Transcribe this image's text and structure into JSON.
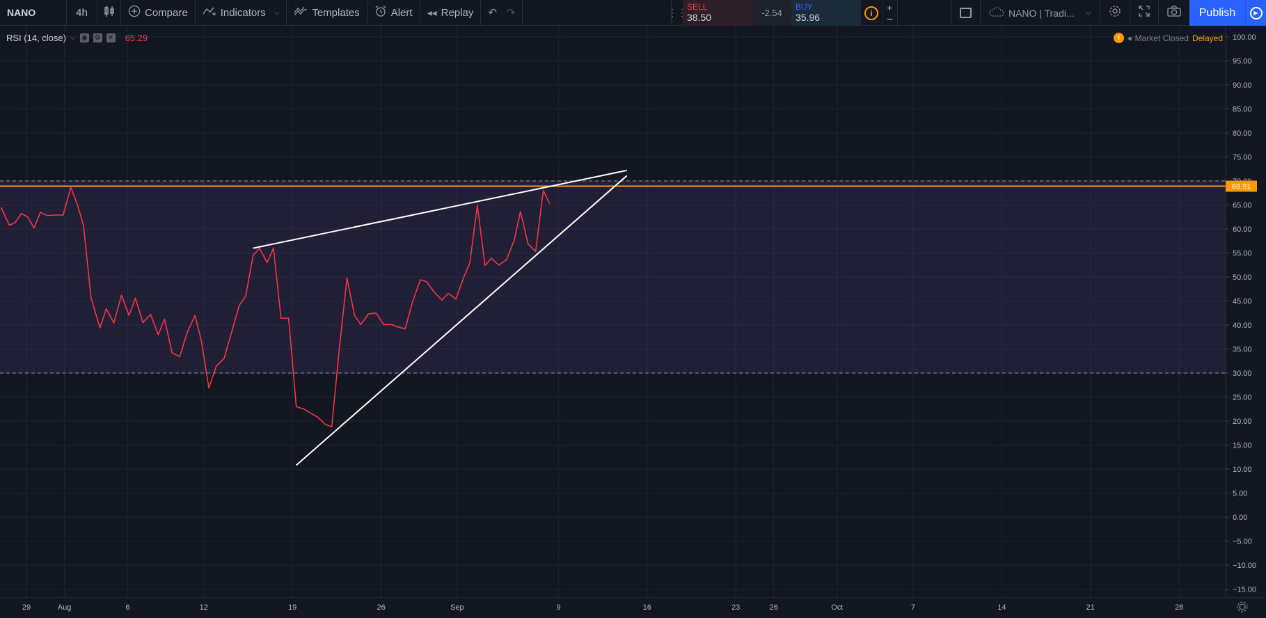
{
  "toolbar": {
    "symbol": "NANO",
    "interval": "4h",
    "compare": "Compare",
    "indicators": "Indicators",
    "templates": "Templates",
    "alert": "Alert",
    "replay": "Replay"
  },
  "trade": {
    "sell_label": "SELL",
    "sell_price": "38.50",
    "spread": "-2.54",
    "buy_label": "BUY",
    "buy_price": "35.96"
  },
  "right_tools": {
    "layout_name": "NANO | Tradi...",
    "publish": "Publish"
  },
  "indicator": {
    "name": "RSI (14, close)",
    "value": "65.29"
  },
  "market": {
    "status": "Market Closed",
    "delay": "Delayed"
  },
  "chart_data": {
    "type": "line",
    "ylim": [
      -16,
      102
    ],
    "y_ticks": [
      "100.00",
      "95.00",
      "90.00",
      "85.00",
      "80.00",
      "75.00",
      "70.00",
      "65.00",
      "60.00",
      "55.00",
      "50.00",
      "45.00",
      "40.00",
      "35.00",
      "30.00",
      "25.00",
      "20.00",
      "15.00",
      "10.00",
      "5.00",
      "0.00",
      "−5.00",
      "−10.00",
      "−15.00"
    ],
    "x_labels": [
      {
        "label": "29",
        "t": 0
      },
      {
        "label": "Aug",
        "t": 3
      },
      {
        "label": "6",
        "t": 8
      },
      {
        "label": "12",
        "t": 14
      },
      {
        "label": "19",
        "t": 21
      },
      {
        "label": "26",
        "t": 28
      },
      {
        "label": "Sep",
        "t": 34
      },
      {
        "label": "9",
        "t": 42
      },
      {
        "label": "16",
        "t": 49
      },
      {
        "label": "23",
        "t": 56
      },
      {
        "label": "26",
        "t": 59
      },
      {
        "label": "Oct",
        "t": 64
      },
      {
        "label": "7",
        "t": 70
      },
      {
        "label": "14",
        "t": 77
      },
      {
        "label": "21",
        "t": 84
      },
      {
        "label": "28",
        "t": 91
      }
    ],
    "upper_band": 70,
    "lower_band": 30,
    "level_line": 68.91,
    "level_label": "68.91",
    "series": [
      {
        "color": "#f23645",
        "points": [
          [
            -2,
            64.5
          ],
          [
            -1.35,
            60.8
          ],
          [
            -0.9,
            61.3
          ],
          [
            -0.4,
            63.2
          ],
          [
            0.1,
            62.5
          ],
          [
            0.6,
            60.2
          ],
          [
            1.1,
            63.5
          ],
          [
            1.6,
            62.8
          ],
          [
            2.3,
            62.9
          ],
          [
            2.9,
            62.9
          ],
          [
            3.5,
            68.7
          ],
          [
            4.0,
            65.2
          ],
          [
            4.5,
            60.8
          ],
          [
            5.1,
            45.7
          ],
          [
            5.8,
            39.4
          ],
          [
            6.3,
            43.4
          ],
          [
            6.9,
            40.4
          ],
          [
            7.5,
            46.2
          ],
          [
            8.1,
            42.0
          ],
          [
            8.6,
            45.6
          ],
          [
            9.2,
            40.5
          ],
          [
            9.8,
            42.2
          ],
          [
            10.4,
            38.0
          ],
          [
            10.9,
            41.2
          ],
          [
            11.5,
            34.2
          ],
          [
            12.1,
            33.4
          ],
          [
            12.7,
            38.5
          ],
          [
            13.3,
            42.0
          ],
          [
            13.8,
            36.8
          ],
          [
            14.4,
            26.9
          ],
          [
            15.0,
            31.5
          ],
          [
            15.6,
            33.0
          ],
          [
            16.2,
            38.5
          ],
          [
            16.8,
            44.1
          ],
          [
            17.3,
            46.0
          ],
          [
            17.9,
            54.5
          ],
          [
            18.4,
            56.0
          ],
          [
            19.0,
            53.0
          ],
          [
            19.5,
            56.0
          ],
          [
            20.1,
            41.4
          ],
          [
            20.7,
            41.4
          ],
          [
            21.3,
            23.0
          ],
          [
            21.9,
            22.5
          ],
          [
            22.4,
            21.7
          ],
          [
            23.0,
            20.8
          ],
          [
            23.6,
            19.3
          ],
          [
            24.1,
            18.8
          ],
          [
            24.7,
            35.0
          ],
          [
            25.3,
            49.8
          ],
          [
            25.9,
            42.0
          ],
          [
            26.4,
            40.1
          ],
          [
            27.0,
            42.3
          ],
          [
            27.6,
            42.5
          ],
          [
            28.2,
            40.1
          ],
          [
            28.8,
            40.1
          ],
          [
            29.3,
            39.6
          ],
          [
            29.9,
            39.2
          ],
          [
            30.5,
            45.0
          ],
          [
            31.1,
            49.4
          ],
          [
            31.6,
            49.0
          ],
          [
            32.2,
            46.8
          ],
          [
            32.8,
            45.2
          ],
          [
            33.3,
            46.6
          ],
          [
            33.9,
            45.4
          ],
          [
            34.5,
            49.8
          ],
          [
            35.0,
            52.9
          ],
          [
            35.6,
            64.9
          ],
          [
            36.2,
            52.4
          ],
          [
            36.7,
            53.9
          ],
          [
            37.3,
            52.5
          ],
          [
            37.9,
            53.6
          ],
          [
            38.5,
            57.6
          ],
          [
            39.0,
            63.6
          ],
          [
            39.6,
            56.9
          ],
          [
            40.2,
            55.3
          ],
          [
            40.8,
            68.0
          ],
          [
            41.3,
            65.3
          ]
        ]
      }
    ],
    "trendlines": [
      {
        "color": "#ffffff",
        "from": [
          17.9,
          56.0
        ],
        "to": [
          47.4,
          72.2
        ]
      },
      {
        "color": "#ffffff",
        "from": [
          21.3,
          10.8
        ],
        "to": [
          47.4,
          71.1
        ]
      }
    ]
  }
}
